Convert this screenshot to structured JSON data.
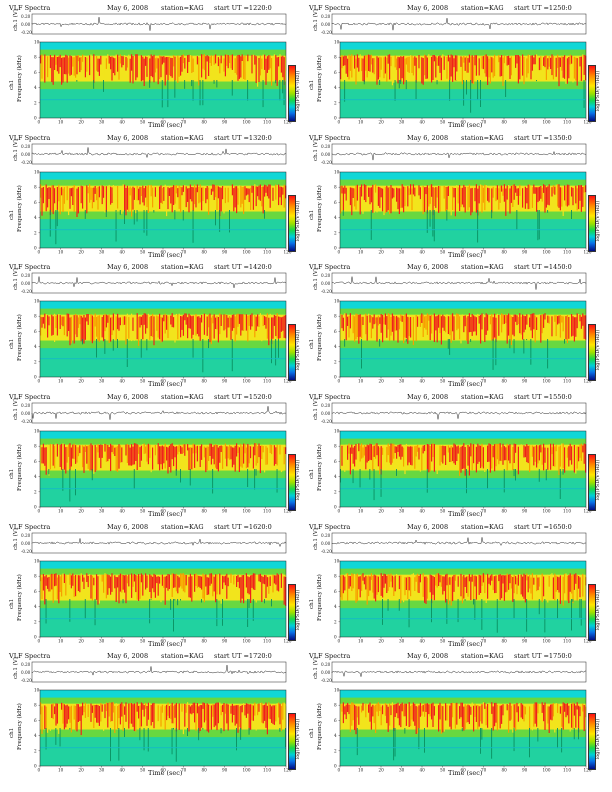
{
  "common": {
    "title": "VLF Spectra",
    "date": "May 6, 2008",
    "station": "station=KAG",
    "start_prefix": "start UT =",
    "ch_label": "ch.1 (V)",
    "ch1_label": "ch1",
    "freq_label": "Frequency (kHz)",
    "x_label": "Time (sec)",
    "cbar_label": "log(PSD(V²/Hz))",
    "x_ticks": [
      "0",
      "10",
      "20",
      "30",
      "40",
      "50",
      "60",
      "70",
      "80",
      "90",
      "100",
      "110",
      "120"
    ],
    "y_ticks": [
      "0",
      "2",
      "4",
      "6",
      "8",
      "10"
    ],
    "trace_ticks": [
      "0.20",
      "0.00",
      "-0.20"
    ],
    "cbar_ticks": [
      "-2",
      "-4"
    ]
  },
  "panels": [
    {
      "start": "1220:0"
    },
    {
      "start": "1250:0"
    },
    {
      "start": "1320:0"
    },
    {
      "start": "1350:0"
    },
    {
      "start": "1420:0"
    },
    {
      "start": "1450:0"
    },
    {
      "start": "1520:0"
    },
    {
      "start": "1550:0"
    },
    {
      "start": "1620:0"
    },
    {
      "start": "1650:0"
    },
    {
      "start": "1720:0"
    },
    {
      "start": "1750:0"
    }
  ],
  "colors": {
    "background": "#21d2a0",
    "top_band": "#10d7d7",
    "red": "#f0201a",
    "yellow": "#f2e41c",
    "green": "#68d840",
    "cyan": "#18cfd0"
  }
}
